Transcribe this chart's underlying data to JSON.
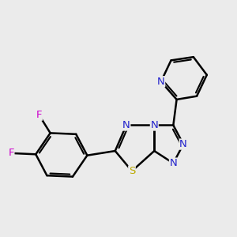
{
  "background_color": "#ebebeb",
  "bond_color": "#000000",
  "bond_width": 1.8,
  "atom_colors": {
    "N": "#2222cc",
    "S": "#bbaa00",
    "F": "#cc00cc"
  },
  "figsize": [
    3.0,
    3.0
  ],
  "dpi": 100
}
